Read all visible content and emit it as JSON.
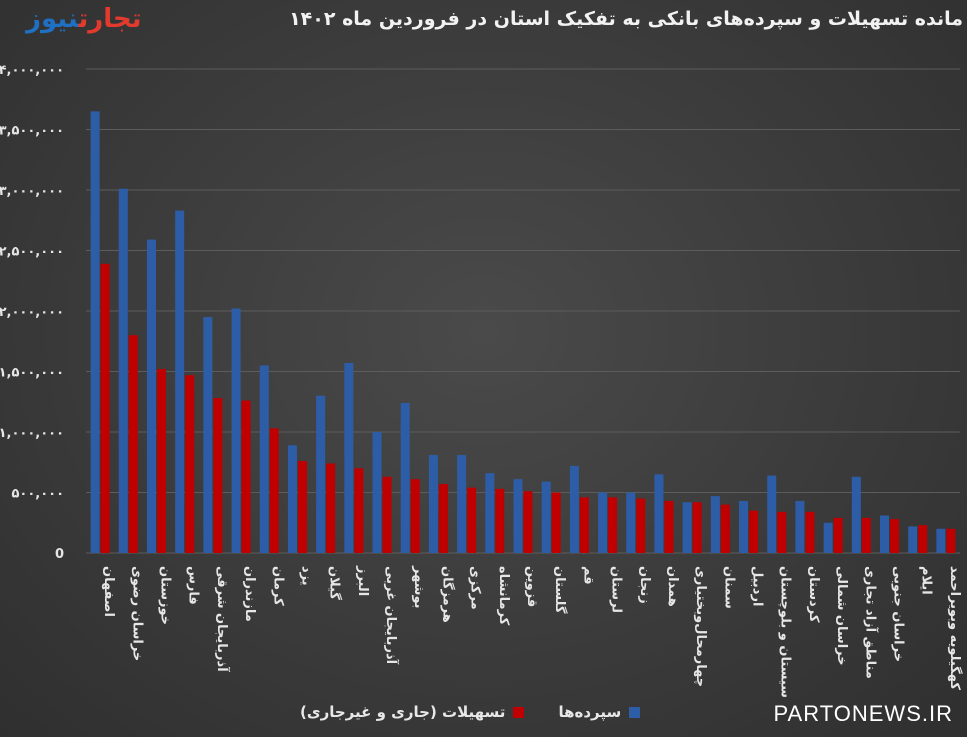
{
  "title": "مانده تسهیلات و سپرده‌های بانکی به تفکیک استان در فروردین ماه ۱۴۰۲",
  "logo": {
    "part1": "تجارت",
    "part2": "نیوز"
  },
  "watermark": "PARTONEWS.IR",
  "legend": [
    {
      "label": "سپرده‌ها",
      "color": "#2e5da8"
    },
    {
      "label": "تسهیلات (جاری و غیرجاری)",
      "color": "#c00000"
    }
  ],
  "chart_data": {
    "type": "bar",
    "title": "مانده تسهیلات و سپرده‌های بانکی به تفکیک استان در فروردین ماه ۱۴۰۲",
    "ylim": [
      0,
      4000000
    ],
    "yticks": [
      0,
      500000,
      1000000,
      1500000,
      2000000,
      2500000,
      3000000,
      3500000,
      4000000
    ],
    "ytick_labels": [
      "0",
      "۵۰۰,۰۰۰",
      "۱,۰۰۰,۰۰۰",
      "۱,۵۰۰,۰۰۰",
      "۲,۰۰۰,۰۰۰",
      "۲,۵۰۰,۰۰۰",
      "۳,۰۰۰,۰۰۰",
      "۳,۵۰۰,۰۰۰",
      "۴,۰۰۰,۰۰۰"
    ],
    "grid": true,
    "legend_position": "bottom",
    "categories": [
      "اصفهان",
      "خراسان رضوی",
      "خوزستان",
      "فارس",
      "آذربایجان شرقی",
      "مازندران",
      "کرمان",
      "یزد",
      "گیلان",
      "البرز",
      "آذربایجان غربی",
      "بوشهر",
      "هرمزگان",
      "مرکزی",
      "کرمانشاه",
      "قزوین",
      "گلستان",
      "قم",
      "لرستان",
      "زنجان",
      "همدان",
      "چهارمحال‌وبختیاری",
      "سمنان",
      "اردبیل",
      "سیستان و بلوچستان",
      "کردستان",
      "خراسان شمالی",
      "مناطق آزاد تجاری",
      "خراسان جنوبی",
      "ایلام",
      "کهگیلویه وبویراحمد"
    ],
    "series": [
      {
        "name": "سپرده‌ها",
        "color": "#2e5da8",
        "values": [
          3650000,
          3010000,
          2590000,
          2830000,
          1950000,
          2020000,
          1550000,
          890000,
          1300000,
          1570000,
          1000000,
          1240000,
          810000,
          810000,
          660000,
          610000,
          590000,
          720000,
          500000,
          500000,
          650000,
          420000,
          470000,
          430000,
          640000,
          430000,
          250000,
          630000,
          310000,
          220000,
          200000
        ]
      },
      {
        "name": "تسهیلات (جاری و غیرجاری)",
        "color": "#c00000",
        "values": [
          2390000,
          1800000,
          1520000,
          1470000,
          1280000,
          1260000,
          1030000,
          760000,
          740000,
          700000,
          630000,
          610000,
          570000,
          540000,
          530000,
          510000,
          500000,
          460000,
          460000,
          450000,
          430000,
          420000,
          400000,
          350000,
          340000,
          340000,
          290000,
          290000,
          280000,
          230000,
          200000
        ]
      }
    ]
  }
}
